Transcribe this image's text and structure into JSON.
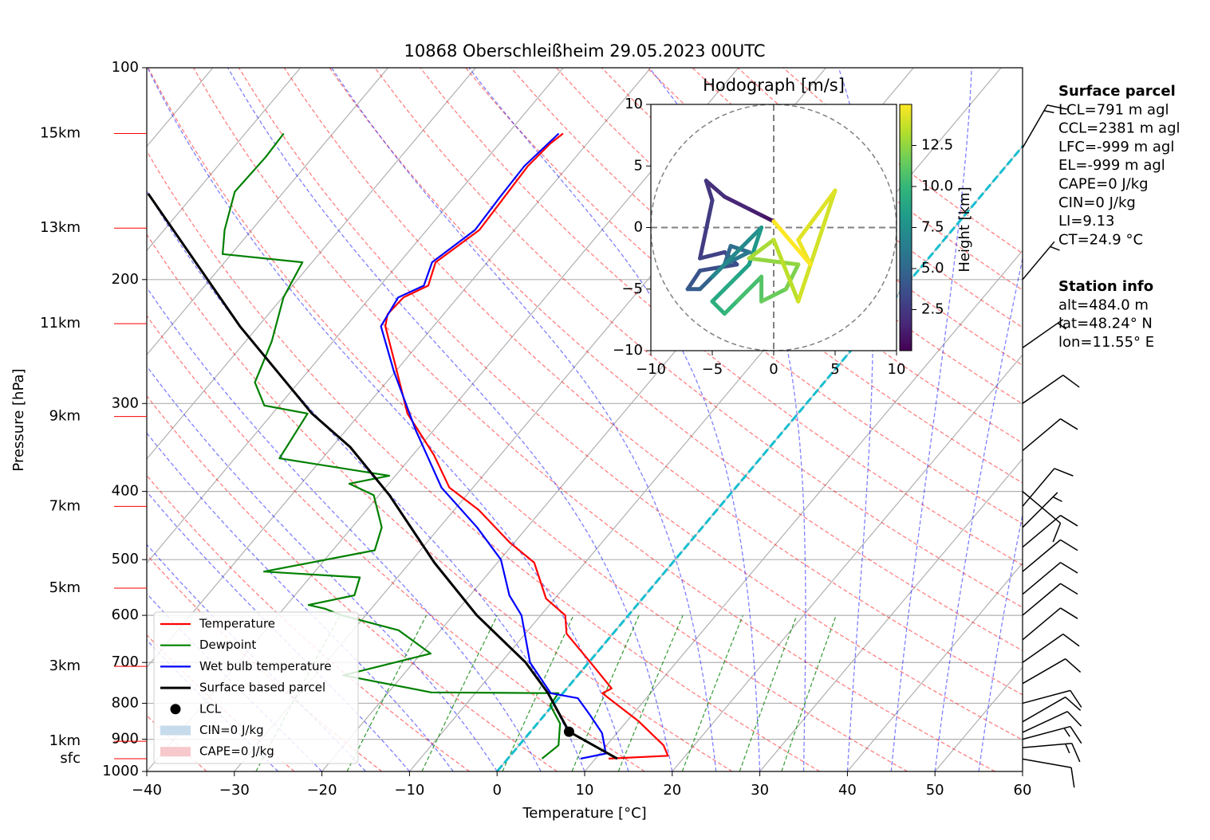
{
  "chart_data": {
    "type": "skewt",
    "title": "10868 Oberschleißheim 29.05.2023 00UTC",
    "x_label": "Temperature [°C]",
    "y_label": "Pressure [hPa]",
    "xlim": [
      -40,
      60
    ],
    "xticks": [
      {
        "value": -40,
        "label": "−40"
      },
      {
        "value": -30,
        "label": "−30"
      },
      {
        "value": -20,
        "label": "−20"
      },
      {
        "value": -10,
        "label": "−10"
      },
      0,
      10,
      20,
      30,
      40,
      50,
      60
    ],
    "ylim": [
      1000,
      100
    ],
    "yticks": [
      100,
      200,
      300,
      400,
      500,
      600,
      700,
      800,
      900,
      1000
    ],
    "log_y": true,
    "grid": true,
    "series": [
      {
        "name": "Temperature",
        "color": "#ff0000",
        "y": [
          959,
          950,
          918,
          848,
          774,
          762,
          700,
          637,
          600,
          568,
          505,
          473,
          425,
          395,
          355,
          310,
          262,
          233,
          224,
          212,
          204,
          189,
          170,
          153,
          138,
          128,
          124
        ],
        "x": [
          11.5,
          18.0,
          16.5,
          11.3,
          4.5,
          5.1,
          0.2,
          -5.3,
          -7.2,
          -11.0,
          -15.8,
          -20.5,
          -27.2,
          -32.7,
          -37.6,
          -44.6,
          -51.0,
          -55.5,
          -56.4,
          -56.2,
          -54.5,
          -55.9,
          -54.0,
          -54.3,
          -54.6,
          -54.2,
          -53.7
        ]
      },
      {
        "name": "Dewpoint",
        "color": "#008000",
        "y": [
          959,
          918,
          855,
          805,
          774,
          772,
          730,
          680,
          630,
          600,
          587,
          580,
          562,
          530,
          520,
          485,
          450,
          405,
          390,
          380,
          359,
          310,
          302,
          280,
          245,
          212,
          189,
          184,
          170,
          150,
          134,
          124
        ],
        "x": [
          3.9,
          4.5,
          2.6,
          -0.3,
          -0.5,
          -15.1,
          -26.8,
          -18.9,
          -24.8,
          -32.7,
          -35.3,
          -37.5,
          -33.2,
          -34.3,
          -45.8,
          -35.2,
          -36.6,
          -40.6,
          -44.5,
          -40.7,
          -54.9,
          -56.0,
          -61.7,
          -65.0,
          -67.0,
          -69.9,
          -71.1,
          -81.0,
          -83.1,
          -85.6,
          -85.4,
          -85.6
        ]
      },
      {
        "name": "Wet bulb temperature",
        "color": "#0000ff",
        "y": [
          959,
          943,
          882,
          830,
          787,
          774,
          700,
          600,
          562,
          500,
          450,
          395,
          327,
          270,
          233,
          212,
          204,
          189,
          170,
          153,
          138,
          124
        ],
        "x": [
          8.3,
          10.7,
          8.3,
          5.1,
          2.2,
          -1.4,
          -6.7,
          -12.2,
          -15.5,
          -19.9,
          -25.7,
          -33.6,
          -42.1,
          -50.2,
          -56.0,
          -56.8,
          -55.0,
          -56.3,
          -54.5,
          -54.8,
          -55.0,
          -54.2
        ]
      },
      {
        "name": "Surface based parcel",
        "color": "#000000",
        "y": [
          959,
          878,
          774,
          700,
          600,
          505,
          405,
          346,
          310,
          233,
          151
        ],
        "x": [
          12.5,
          4.4,
          -1.7,
          -7.2,
          -17.3,
          -27.2,
          -38.8,
          -47.9,
          -55.5,
          -72.1,
          -95.3
        ]
      }
    ],
    "lcl": {
      "name": "LCL",
      "color": "#000000",
      "y": 878,
      "x": 4.4
    },
    "shaded_areas": [
      {
        "name": "CIN=0 J/kg",
        "color": "#c6dbec"
      },
      {
        "name": "CAPE=0 J/kg",
        "color": "#f7c8cc"
      }
    ],
    "highlight_isotherm": {
      "value": 0,
      "color": "#17becf"
    },
    "height_labels": [
      {
        "label": "15km",
        "pressure": 124
      },
      {
        "label": "13km",
        "pressure": 169
      },
      {
        "label": "11km",
        "pressure": 231
      },
      {
        "label": "9km",
        "pressure": 313
      },
      {
        "label": "7km",
        "pressure": 420
      },
      {
        "label": "5km",
        "pressure": 549
      },
      {
        "label": "3km",
        "pressure": 709
      },
      {
        "label": "1km",
        "pressure": 906
      },
      {
        "label": "sfc",
        "pressure": 959
      }
    ],
    "wind_barbs": {
      "pressure": [
        960,
        925,
        900,
        880,
        850,
        800,
        750,
        700,
        650,
        600,
        560,
        520,
        480,
        450,
        420,
        400,
        350,
        300,
        250,
        200,
        130
      ],
      "direction": [
        100,
        85,
        75,
        65,
        60,
        75,
        60,
        55,
        50,
        50,
        50,
        50,
        50,
        45,
        40,
        130,
        50,
        55,
        55,
        40,
        30
      ],
      "speed": [
        10,
        15,
        15,
        10,
        10,
        10,
        10,
        10,
        10,
        10,
        10,
        10,
        10,
        5,
        10,
        10,
        10,
        10,
        5,
        5,
        15
      ]
    },
    "hodograph": {
      "title": "Hodograph [m/s]",
      "xlim": [
        -10,
        10
      ],
      "ylim": [
        -10,
        10
      ],
      "xticks": [
        {
          "value": -10,
          "label": "−10"
        },
        {
          "value": -5,
          "label": "−5"
        },
        0,
        5,
        10
      ],
      "yticks": [
        {
          "value": -10,
          "label": "−10"
        },
        {
          "value": -5,
          "label": "−5"
        },
        0,
        5,
        10
      ],
      "u": [
        0,
        -1,
        -2,
        -4,
        -5.5,
        -5,
        -6,
        -4,
        -3,
        -6,
        -7,
        -6,
        -4,
        -3.5,
        -2,
        -4,
        -5,
        -2,
        -1,
        -2,
        -3,
        -5,
        -4,
        -3,
        -1,
        -1,
        1,
        2,
        -2,
        0,
        2,
        5,
        2,
        3,
        0
      ],
      "v": [
        0.5,
        1,
        1.5,
        2.5,
        3.8,
        2.2,
        -2.5,
        -2,
        -3,
        -3.5,
        -5,
        -5,
        -3,
        -1.5,
        -2,
        -3,
        -4,
        -1,
        0,
        -3,
        -4,
        -6,
        -7,
        -6,
        -4,
        -6,
        -5,
        -3,
        -2.5,
        -1,
        -6,
        3,
        -1,
        -3,
        0.5
      ],
      "height": [
        0.3,
        0.8,
        1.2,
        1.6,
        2.0,
        2.3,
        2.7,
        3.0,
        3.3,
        3.6,
        4.0,
        4.3,
        4.7,
        5.0,
        5.5,
        6.0,
        6.5,
        7.0,
        7.5,
        8.0,
        8.5,
        9.0,
        9.5,
        10.0,
        10.5,
        11.0,
        11.5,
        12.0,
        12.5,
        13.0,
        13.5,
        14.0,
        14.3,
        14.6,
        15.0
      ],
      "colorbar_label": "Height [km]",
      "clim": [
        0,
        15
      ],
      "colorbar_ticks": [
        2.5,
        {
          "value": 5,
          "label": "5.0"
        },
        7.5,
        {
          "value": 10,
          "label": "10.0"
        },
        12.5
      ]
    },
    "text_panels": [
      {
        "title": "Surface parcel",
        "lines": [
          "LCL=791 m agl",
          "CCL=2381 m agl",
          "LFC=-999 m agl",
          "EL=-999 m agl",
          "CAPE=0 J/kg",
          "CIN=0 J/kg",
          "LI=9.13",
          "CT=24.9 °C"
        ]
      },
      {
        "title": "Station info",
        "lines": [
          "alt=484.0 m",
          "lat=48.24° N",
          "lon=11.55° E"
        ]
      }
    ]
  }
}
